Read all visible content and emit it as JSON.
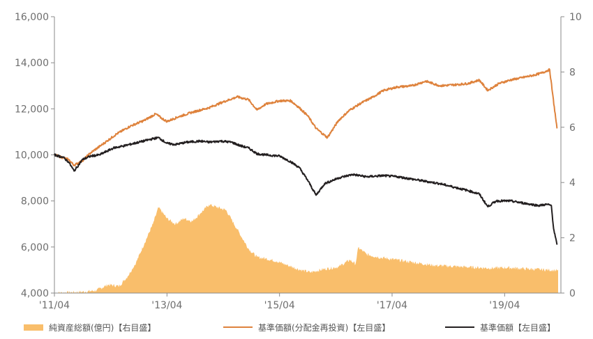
{
  "colors": {
    "area": "#F9BE6B",
    "orange_line": "#DE823C",
    "black_line": "#231F20",
    "axis": "#8A8A8A",
    "tick_text": "#6E6E6E"
  },
  "chart_data": {
    "type": "line",
    "title": "",
    "xlabel": "",
    "x_ticks": [
      "'11/04",
      "'13/04",
      "'15/04",
      "'17/04",
      "'19/04"
    ],
    "left_axis": {
      "ylim": [
        4000,
        16000
      ],
      "ticks": [
        "4,000",
        "6,000",
        "8,000",
        "10,000",
        "12,000",
        "14,000",
        "16,000"
      ]
    },
    "right_axis": {
      "ylim": [
        0,
        10
      ],
      "ticks": [
        "0",
        "2",
        "4",
        "6",
        "8",
        "10"
      ]
    },
    "x_range": [
      2011.25,
      2020.25
    ],
    "series": [
      {
        "name": "純資産総額(億円)【右目盛】",
        "type": "area",
        "axis": "right",
        "color": "#F9BE6B",
        "x": [
          2011.25,
          2011.8,
          2012.0,
          2012.2,
          2012.4,
          2012.55,
          2012.7,
          2012.85,
          2013.0,
          2013.1,
          2013.25,
          2013.4,
          2013.55,
          2013.7,
          2013.85,
          2014.0,
          2014.15,
          2014.3,
          2014.5,
          2014.7,
          2014.85,
          2015.0,
          2015.2,
          2015.4,
          2015.6,
          2015.8,
          2016.0,
          2016.3,
          2016.5,
          2016.6,
          2016.65,
          2016.8,
          2017.0,
          2017.5,
          2018.0,
          2018.5,
          2019.0,
          2019.3,
          2019.6,
          2019.9,
          2020.2
        ],
        "values": [
          0.0,
          0.05,
          0.1,
          0.3,
          0.25,
          0.6,
          1.1,
          1.8,
          2.5,
          3.1,
          2.7,
          2.5,
          2.7,
          2.6,
          2.9,
          3.2,
          3.1,
          3.0,
          2.3,
          1.6,
          1.3,
          1.25,
          1.15,
          1.0,
          0.85,
          0.75,
          0.85,
          0.95,
          1.2,
          1.05,
          1.65,
          1.4,
          1.3,
          1.15,
          1.0,
          0.95,
          0.9,
          0.92,
          0.88,
          0.85,
          0.82
        ]
      },
      {
        "name": "基準価額(分配金再投資)【左目盛】",
        "type": "line",
        "axis": "left",
        "color": "#DE823C",
        "x": [
          2011.25,
          2011.5,
          2011.6,
          2011.75,
          2011.9,
          2012.1,
          2012.35,
          2012.6,
          2012.85,
          2013.05,
          2013.15,
          2013.25,
          2013.45,
          2013.7,
          2014.0,
          2014.25,
          2014.5,
          2014.7,
          2014.85,
          2015.0,
          2015.25,
          2015.45,
          2015.6,
          2015.75,
          2015.9,
          2016.1,
          2016.3,
          2016.5,
          2016.7,
          2016.9,
          2017.1,
          2017.35,
          2017.6,
          2017.85,
          2018.1,
          2018.4,
          2018.6,
          2018.8,
          2018.95,
          2019.15,
          2019.35,
          2019.55,
          2019.75,
          2019.9,
          2020.0,
          2020.05,
          2020.1,
          2020.18
        ],
        "values": [
          10000,
          9800,
          9550,
          9750,
          10100,
          10450,
          10900,
          11250,
          11500,
          11780,
          11600,
          11450,
          11650,
          11850,
          12050,
          12300,
          12520,
          12400,
          11950,
          12200,
          12350,
          12350,
          12050,
          11700,
          11150,
          10750,
          11500,
          11950,
          12250,
          12500,
          12800,
          12950,
          13000,
          13200,
          13000,
          13050,
          13100,
          13250,
          12800,
          13100,
          13250,
          13350,
          13450,
          13550,
          13650,
          13700,
          12700,
          11150
        ]
      },
      {
        "name": "基準価額【左目盛】",
        "type": "line",
        "axis": "left",
        "color": "#231F20",
        "x": [
          2011.25,
          2011.4,
          2011.5,
          2011.6,
          2011.75,
          2011.9,
          2012.05,
          2012.3,
          2012.5,
          2012.75,
          2013.0,
          2013.1,
          2013.25,
          2013.4,
          2013.6,
          2013.85,
          2014.0,
          2014.2,
          2014.4,
          2014.55,
          2014.7,
          2014.85,
          2015.0,
          2015.25,
          2015.45,
          2015.6,
          2015.75,
          2015.9,
          2016.05,
          2016.3,
          2016.55,
          2016.8,
          2017.1,
          2017.35,
          2017.6,
          2017.85,
          2018.1,
          2018.35,
          2018.6,
          2018.8,
          2018.95,
          2019.1,
          2019.35,
          2019.6,
          2019.85,
          2020.0,
          2020.08,
          2020.12,
          2020.18
        ],
        "values": [
          10000,
          9900,
          9700,
          9300,
          9800,
          9950,
          10000,
          10300,
          10400,
          10550,
          10700,
          10750,
          10500,
          10450,
          10550,
          10600,
          10550,
          10600,
          10550,
          10400,
          10300,
          10050,
          10000,
          9950,
          9700,
          9450,
          8900,
          8250,
          8750,
          9000,
          9150,
          9050,
          9100,
          9050,
          8950,
          8850,
          8750,
          8600,
          8450,
          8300,
          7750,
          8000,
          8000,
          7900,
          7800,
          7850,
          7800,
          6800,
          6100
        ]
      }
    ]
  }
}
